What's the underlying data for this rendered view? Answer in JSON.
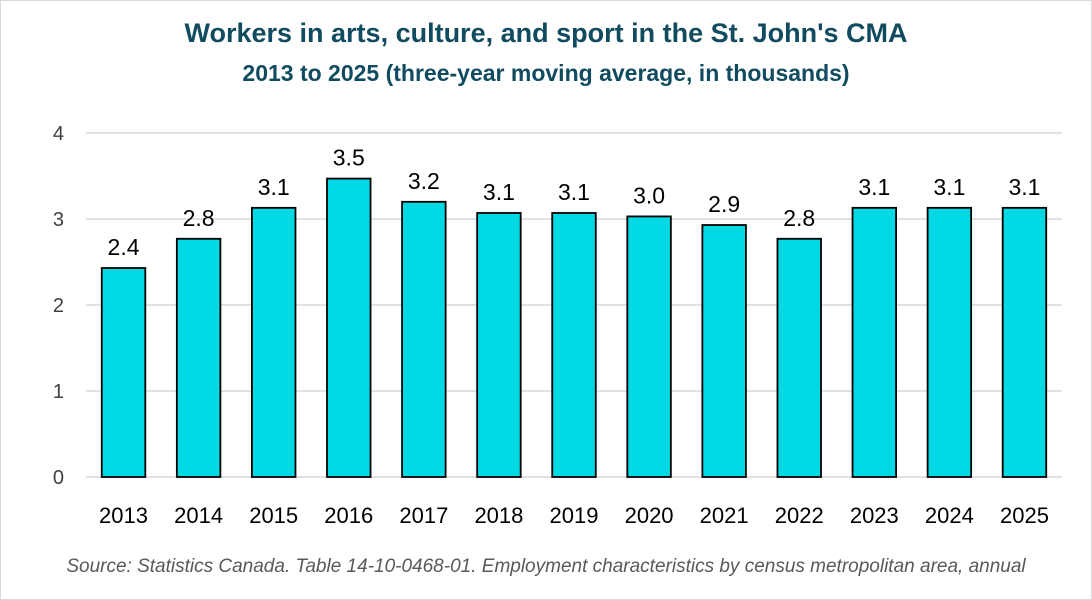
{
  "chart_data": {
    "type": "bar",
    "title": "Workers in arts, culture, and sport in the St. John's CMA",
    "subtitle": "2013 to 2025 (three-year moving average, in thousands)",
    "categories": [
      "2013",
      "2014",
      "2015",
      "2016",
      "2017",
      "2018",
      "2019",
      "2020",
      "2021",
      "2022",
      "2023",
      "2024",
      "2025"
    ],
    "values": [
      2.43,
      2.77,
      3.13,
      3.47,
      3.2,
      3.07,
      3.07,
      3.03,
      2.93,
      2.77,
      3.13,
      3.13,
      3.13
    ],
    "data_labels": [
      "2.4",
      "2.8",
      "3.1",
      "3.5",
      "3.2",
      "3.1",
      "3.1",
      "3.0",
      "2.9",
      "2.8",
      "3.1",
      "3.1",
      "3.1"
    ],
    "ylim": [
      0,
      4
    ],
    "yticks": [
      0,
      1,
      2,
      3,
      4
    ],
    "grid": true,
    "bar_color": "#00d8e4",
    "bar_outline": "#000000",
    "source": "Source: Statistics Canada. Table 14-10-0468-01. Employment characteristics by census metropolitan area, annual"
  },
  "colors": {
    "title": "#114b5f",
    "gridline": "#d9d9d9",
    "source": "#595959"
  }
}
